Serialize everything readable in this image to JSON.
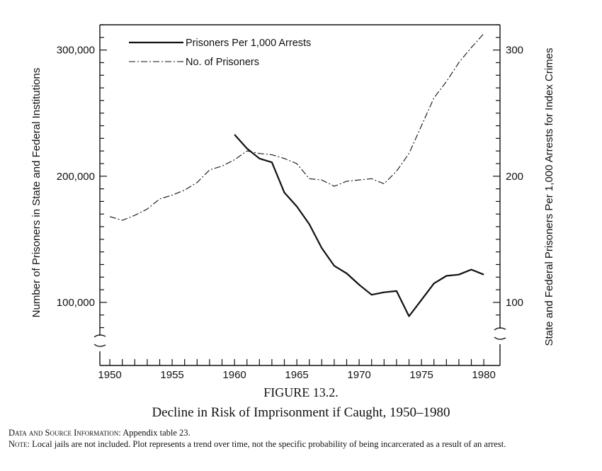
{
  "chart_data": {
    "type": "line",
    "x": [
      1950,
      1951,
      1952,
      1953,
      1954,
      1955,
      1956,
      1957,
      1958,
      1959,
      1960,
      1961,
      1962,
      1963,
      1964,
      1965,
      1966,
      1967,
      1968,
      1969,
      1970,
      1971,
      1972,
      1973,
      1974,
      1975,
      1976,
      1977,
      1978,
      1979,
      1980
    ],
    "series": [
      {
        "name": "Prisoners Per 1,000 Arrests",
        "axis": "right",
        "style": "solid",
        "x": [
          1960,
          1961,
          1962,
          1963,
          1964,
          1965,
          1966,
          1967,
          1968,
          1969,
          1970,
          1971,
          1972,
          1973,
          1974,
          1975,
          1976,
          1977,
          1978,
          1979,
          1980
        ],
        "values": [
          233,
          222,
          214,
          211,
          187,
          176,
          162,
          143,
          129,
          123,
          114,
          106,
          108,
          109,
          89,
          102,
          115,
          121,
          122,
          126,
          122
        ]
      },
      {
        "name": "No. of Prisoners",
        "axis": "left",
        "style": "dash-dot",
        "x": [
          1950,
          1951,
          1952,
          1953,
          1954,
          1955,
          1956,
          1957,
          1958,
          1959,
          1960,
          1961,
          1962,
          1963,
          1964,
          1965,
          1966,
          1967,
          1968,
          1969,
          1970,
          1971,
          1972,
          1973,
          1974,
          1975,
          1976,
          1977,
          1978,
          1979,
          1980
        ],
        "values": [
          168000,
          165000,
          169000,
          174000,
          182000,
          185000,
          189000,
          195000,
          205000,
          208000,
          213000,
          220000,
          218000,
          217000,
          214000,
          210000,
          198000,
          197000,
          192000,
          196000,
          197000,
          198000,
          194000,
          204000,
          218000,
          240000,
          262000,
          275000,
          290000,
          302000,
          313000
        ]
      }
    ],
    "xlabel": "",
    "ylabel_left": "Number of Prisoners in State and Federal Institutions",
    "ylabel_right": "State and Federal Prisoners Per 1,000 Arrests for Index Crimes",
    "x_ticks": [
      1950,
      1955,
      1960,
      1965,
      1970,
      1975,
      1980
    ],
    "x_tick_labels": [
      "1950",
      "1955",
      "1960",
      "1965",
      "1970",
      "1975",
      "1980"
    ],
    "y_left_ticks": [
      100000,
      200000,
      300000
    ],
    "y_left_tick_labels": [
      "100,000",
      "200,000",
      "300,000"
    ],
    "y_right_ticks": [
      100,
      200,
      300
    ],
    "y_right_tick_labels": [
      "100",
      "200",
      "300"
    ],
    "xlim": [
      1949.2,
      1981.3
    ],
    "y_left_lim": [
      50000,
      320000
    ],
    "y_right_lim": [
      50,
      320
    ],
    "axis_break": true,
    "grid": false,
    "legend_position": "top-left",
    "line_color": "#111111"
  },
  "caption": {
    "figure_number": "FIGURE 13.2.",
    "title": "Decline in Risk of Imprisonment if Caught, 1950–1980"
  },
  "notes": {
    "source_label": "Data and Source Information:",
    "source_text": " Appendix table 23.",
    "note_label": "Note:",
    "note_text": " Local jails are not included. Plot represents a trend over time, not the specific probability of being incarcerated as a result of an arrest."
  }
}
